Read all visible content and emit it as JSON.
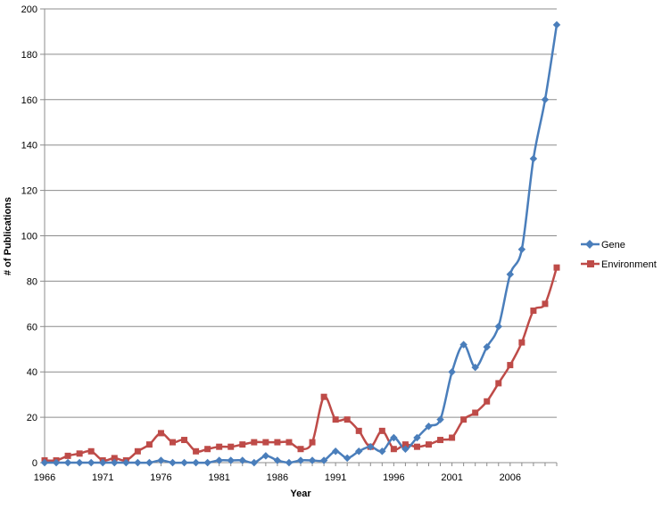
{
  "chart_data": {
    "type": "line",
    "title": "",
    "xlabel": "Year",
    "ylabel": "# of Publications",
    "ylim": [
      0,
      200
    ],
    "xlim": [
      1966,
      2010
    ],
    "grid": "horizontal",
    "legend_position": "right",
    "x_ticks": [
      1966,
      1971,
      1976,
      1981,
      1986,
      1991,
      1996,
      2001,
      2006
    ],
    "y_ticks": [
      0,
      20,
      40,
      60,
      80,
      100,
      120,
      140,
      160,
      180,
      200
    ],
    "x": [
      1966,
      1967,
      1968,
      1969,
      1970,
      1971,
      1972,
      1973,
      1974,
      1975,
      1976,
      1977,
      1978,
      1979,
      1980,
      1981,
      1982,
      1983,
      1984,
      1985,
      1986,
      1987,
      1988,
      1989,
      1990,
      1991,
      1992,
      1993,
      1994,
      1995,
      1996,
      1997,
      1998,
      1999,
      2000,
      2001,
      2002,
      2003,
      2004,
      2005,
      2006,
      2007,
      2008,
      2009,
      2010
    ],
    "series": [
      {
        "name": "Gene",
        "color": "#4a7ebb",
        "marker": "diamond",
        "smooth": true,
        "values": [
          0,
          0,
          0,
          0,
          0,
          0,
          0,
          0,
          0,
          0,
          1,
          0,
          0,
          0,
          0,
          1,
          1,
          1,
          0,
          3,
          1,
          0,
          1,
          1,
          1,
          5,
          2,
          5,
          7,
          5,
          11,
          6,
          11,
          16,
          19,
          40,
          52,
          42,
          51,
          60,
          83,
          94,
          134,
          160,
          193
        ]
      },
      {
        "name": "Environment",
        "color": "#be4b48",
        "marker": "square",
        "smooth": true,
        "values": [
          1,
          1,
          3,
          4,
          5,
          1,
          2,
          1,
          5,
          8,
          13,
          9,
          10,
          5,
          6,
          7,
          7,
          8,
          9,
          9,
          9,
          9,
          6,
          9,
          29,
          19,
          19,
          14,
          7,
          14,
          6,
          8,
          7,
          8,
          10,
          11,
          19,
          22,
          27,
          35,
          43,
          53,
          67,
          70,
          86
        ]
      }
    ]
  }
}
